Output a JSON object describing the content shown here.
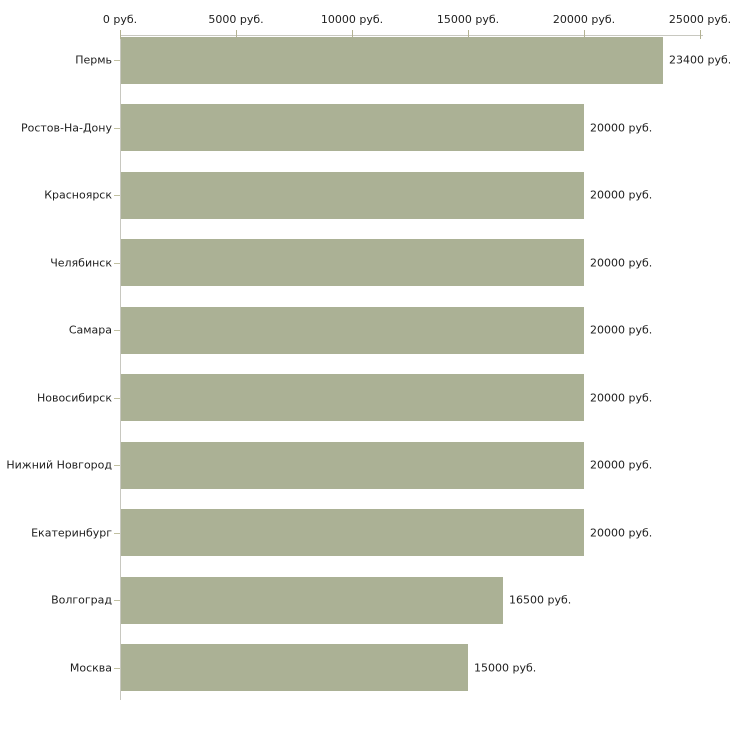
{
  "chart_data": {
    "type": "bar",
    "orientation": "horizontal",
    "title": "",
    "xlabel": "",
    "ylabel": "",
    "categories": [
      "Пермь",
      "Ростов-На-Дону",
      "Красноярск",
      "Челябинск",
      "Самара",
      "Новосибирск",
      "Нижний Новгород",
      "Екатеринбург",
      "Волгоград",
      "Москва"
    ],
    "values": [
      23400,
      20000,
      20000,
      20000,
      20000,
      20000,
      20000,
      20000,
      16500,
      15000
    ],
    "value_labels": [
      "23400 руб.",
      "20000 руб.",
      "20000 руб.",
      "20000 руб.",
      "20000 руб.",
      "20000 руб.",
      "20000 руб.",
      "20000 руб.",
      "16500 руб.",
      "15000 руб."
    ],
    "x_ticks": [
      0,
      5000,
      10000,
      15000,
      20000,
      25000
    ],
    "x_tick_labels": [
      "0 руб.",
      "5000 руб.",
      "10000 руб.",
      "15000 руб.",
      "20000 руб.",
      "25000 руб."
    ],
    "xlim": [
      0,
      25000
    ],
    "axis_position": "top",
    "grid": false,
    "legend": false,
    "colors": {
      "bar": "#abb195",
      "axis_line": "#c8c8c0",
      "x_tick": "#b3b292",
      "y_tick": "#c2c1a2",
      "text": "#1e1e1e",
      "background": "#ffffff"
    }
  }
}
